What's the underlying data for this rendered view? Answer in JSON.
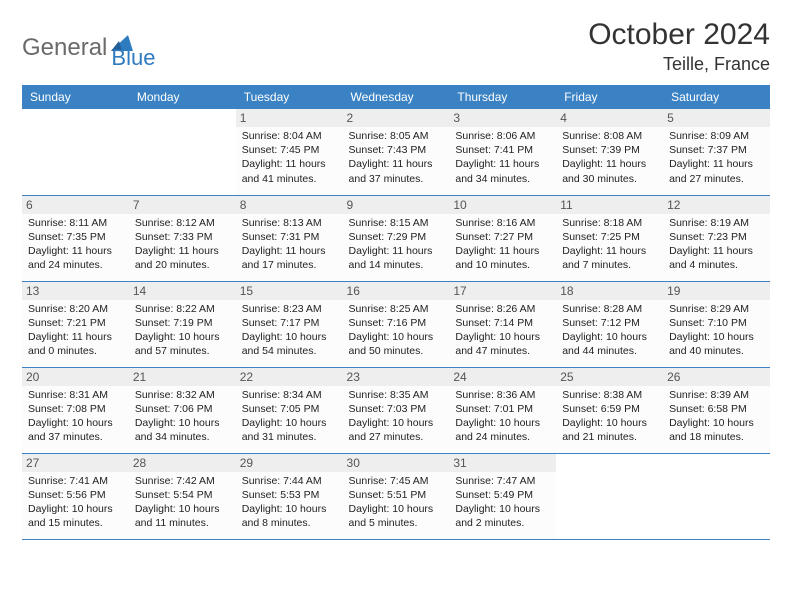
{
  "logo": {
    "part1": "General",
    "part2": "Blue"
  },
  "title": "October 2024",
  "location": "Teille, France",
  "colors": {
    "header_bg": "#3a82c4",
    "header_text": "#ffffff",
    "border": "#3a82c4",
    "daynum_bg": "#eeeeee",
    "logo_gray": "#6a6a6a",
    "logo_blue": "#2f7bbf"
  },
  "day_names": [
    "Sunday",
    "Monday",
    "Tuesday",
    "Wednesday",
    "Thursday",
    "Friday",
    "Saturday"
  ],
  "first_weekday": 2,
  "days": [
    {
      "n": 1,
      "sr": "8:04 AM",
      "ss": "7:45 PM",
      "dl": "11 hours and 41 minutes."
    },
    {
      "n": 2,
      "sr": "8:05 AM",
      "ss": "7:43 PM",
      "dl": "11 hours and 37 minutes."
    },
    {
      "n": 3,
      "sr": "8:06 AM",
      "ss": "7:41 PM",
      "dl": "11 hours and 34 minutes."
    },
    {
      "n": 4,
      "sr": "8:08 AM",
      "ss": "7:39 PM",
      "dl": "11 hours and 30 minutes."
    },
    {
      "n": 5,
      "sr": "8:09 AM",
      "ss": "7:37 PM",
      "dl": "11 hours and 27 minutes."
    },
    {
      "n": 6,
      "sr": "8:11 AM",
      "ss": "7:35 PM",
      "dl": "11 hours and 24 minutes."
    },
    {
      "n": 7,
      "sr": "8:12 AM",
      "ss": "7:33 PM",
      "dl": "11 hours and 20 minutes."
    },
    {
      "n": 8,
      "sr": "8:13 AM",
      "ss": "7:31 PM",
      "dl": "11 hours and 17 minutes."
    },
    {
      "n": 9,
      "sr": "8:15 AM",
      "ss": "7:29 PM",
      "dl": "11 hours and 14 minutes."
    },
    {
      "n": 10,
      "sr": "8:16 AM",
      "ss": "7:27 PM",
      "dl": "11 hours and 10 minutes."
    },
    {
      "n": 11,
      "sr": "8:18 AM",
      "ss": "7:25 PM",
      "dl": "11 hours and 7 minutes."
    },
    {
      "n": 12,
      "sr": "8:19 AM",
      "ss": "7:23 PM",
      "dl": "11 hours and 4 minutes."
    },
    {
      "n": 13,
      "sr": "8:20 AM",
      "ss": "7:21 PM",
      "dl": "11 hours and 0 minutes."
    },
    {
      "n": 14,
      "sr": "8:22 AM",
      "ss": "7:19 PM",
      "dl": "10 hours and 57 minutes."
    },
    {
      "n": 15,
      "sr": "8:23 AM",
      "ss": "7:17 PM",
      "dl": "10 hours and 54 minutes."
    },
    {
      "n": 16,
      "sr": "8:25 AM",
      "ss": "7:16 PM",
      "dl": "10 hours and 50 minutes."
    },
    {
      "n": 17,
      "sr": "8:26 AM",
      "ss": "7:14 PM",
      "dl": "10 hours and 47 minutes."
    },
    {
      "n": 18,
      "sr": "8:28 AM",
      "ss": "7:12 PM",
      "dl": "10 hours and 44 minutes."
    },
    {
      "n": 19,
      "sr": "8:29 AM",
      "ss": "7:10 PM",
      "dl": "10 hours and 40 minutes."
    },
    {
      "n": 20,
      "sr": "8:31 AM",
      "ss": "7:08 PM",
      "dl": "10 hours and 37 minutes."
    },
    {
      "n": 21,
      "sr": "8:32 AM",
      "ss": "7:06 PM",
      "dl": "10 hours and 34 minutes."
    },
    {
      "n": 22,
      "sr": "8:34 AM",
      "ss": "7:05 PM",
      "dl": "10 hours and 31 minutes."
    },
    {
      "n": 23,
      "sr": "8:35 AM",
      "ss": "7:03 PM",
      "dl": "10 hours and 27 minutes."
    },
    {
      "n": 24,
      "sr": "8:36 AM",
      "ss": "7:01 PM",
      "dl": "10 hours and 24 minutes."
    },
    {
      "n": 25,
      "sr": "8:38 AM",
      "ss": "6:59 PM",
      "dl": "10 hours and 21 minutes."
    },
    {
      "n": 26,
      "sr": "8:39 AM",
      "ss": "6:58 PM",
      "dl": "10 hours and 18 minutes."
    },
    {
      "n": 27,
      "sr": "7:41 AM",
      "ss": "5:56 PM",
      "dl": "10 hours and 15 minutes."
    },
    {
      "n": 28,
      "sr": "7:42 AM",
      "ss": "5:54 PM",
      "dl": "10 hours and 11 minutes."
    },
    {
      "n": 29,
      "sr": "7:44 AM",
      "ss": "5:53 PM",
      "dl": "10 hours and 8 minutes."
    },
    {
      "n": 30,
      "sr": "7:45 AM",
      "ss": "5:51 PM",
      "dl": "10 hours and 5 minutes."
    },
    {
      "n": 31,
      "sr": "7:47 AM",
      "ss": "5:49 PM",
      "dl": "10 hours and 2 minutes."
    }
  ],
  "labels": {
    "sunrise": "Sunrise:",
    "sunset": "Sunset:",
    "daylight": "Daylight:"
  }
}
